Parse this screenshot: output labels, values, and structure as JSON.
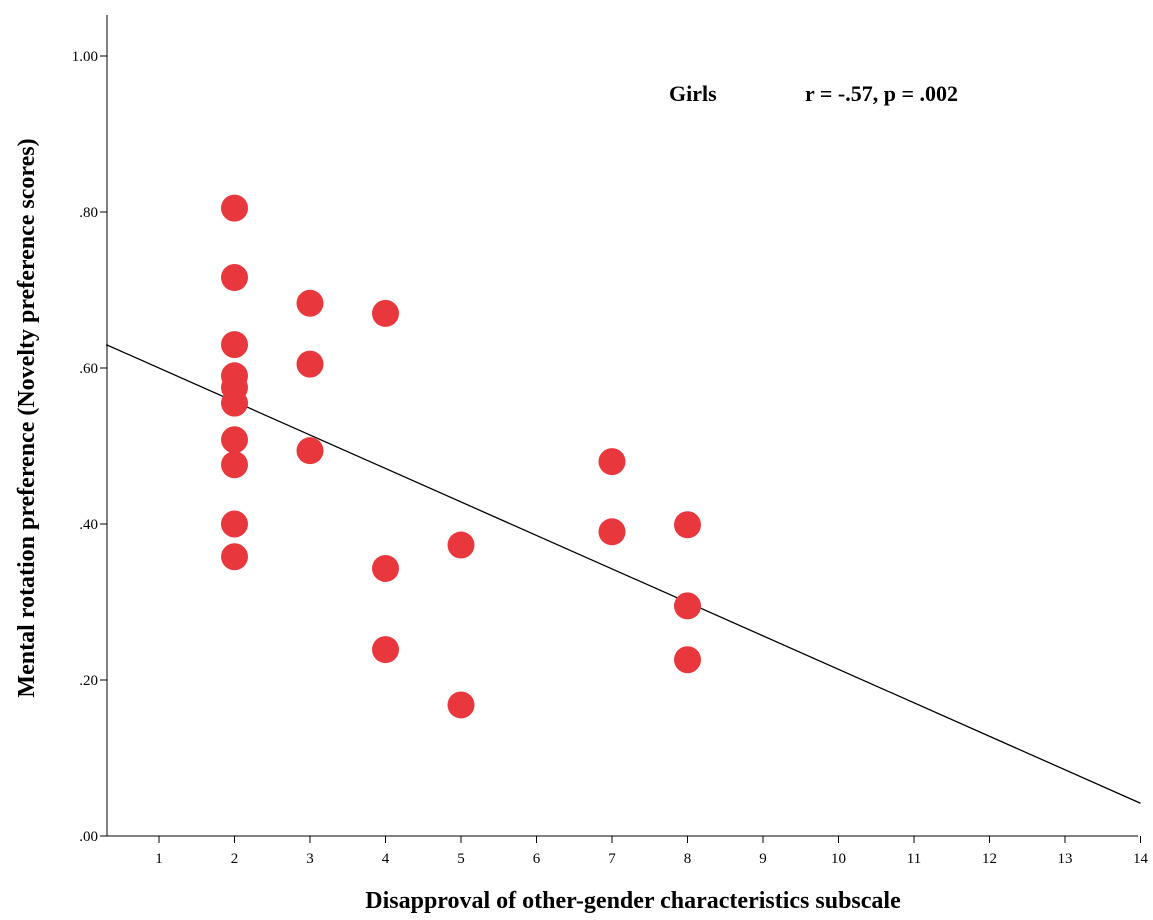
{
  "chart_data": {
    "type": "scatter",
    "title": "",
    "xlabel": "Disapproval of other-gender characteristics subscale",
    "ylabel": "Mental rotation preference (Novelty preference scores)",
    "xlim": [
      0.3,
      14
    ],
    "ylim": [
      0,
      1.05
    ],
    "x_ticks": [
      1,
      2,
      3,
      4,
      5,
      6,
      7,
      8,
      9,
      10,
      11,
      12,
      13,
      14
    ],
    "x_tick_labels": [
      "1",
      "2",
      "3",
      "4",
      "5",
      "6",
      "7",
      "8",
      "9",
      "10",
      "11",
      "12",
      "13",
      "14"
    ],
    "y_ticks": [
      0,
      0.2,
      0.4,
      0.6,
      0.8,
      1.0
    ],
    "y_tick_labels": [
      ".00",
      ".20",
      ".40",
      ".60",
      ".80",
      "1.00"
    ],
    "grid": false,
    "point_color": "#e8383d",
    "annotations": [
      {
        "text": "Girls"
      },
      {
        "text": "r = -.57, p = .002"
      }
    ],
    "series": [
      {
        "x": [
          2,
          2,
          2,
          2,
          2,
          2,
          2,
          2,
          2,
          2,
          3,
          3,
          3,
          4,
          4,
          4,
          5,
          5,
          7,
          7,
          8,
          8,
          8
        ],
        "y": [
          0.805,
          0.716,
          0.63,
          0.59,
          0.575,
          0.555,
          0.508,
          0.476,
          0.4,
          0.358,
          0.683,
          0.605,
          0.494,
          0.67,
          0.343,
          0.239,
          0.373,
          0.168,
          0.48,
          0.39,
          0.399,
          0.295,
          0.226
        ]
      }
    ],
    "fit_line": {
      "x": [
        0.3,
        14
      ],
      "y": [
        0.63,
        0.042
      ],
      "color": "#000000"
    }
  }
}
